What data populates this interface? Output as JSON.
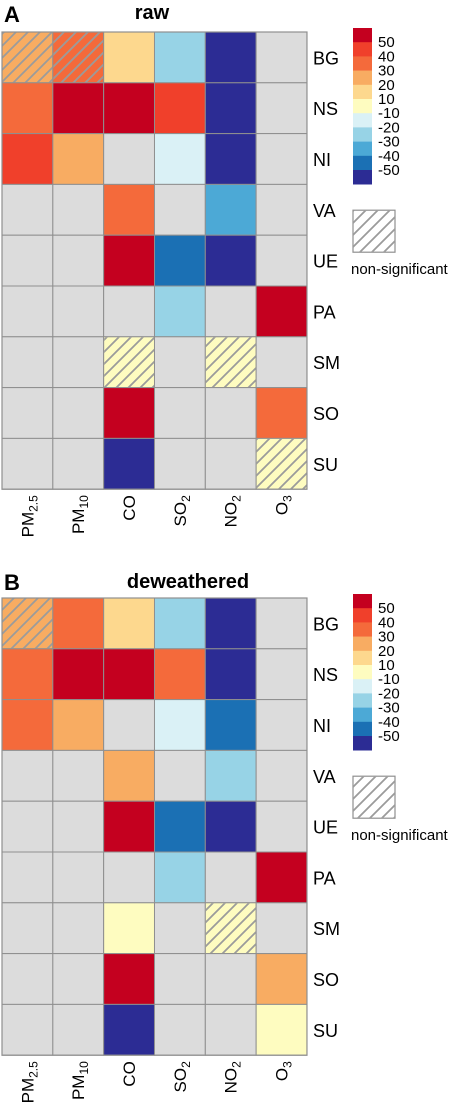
{
  "chart_data": [
    {
      "type": "heatmap",
      "panel_label": "A",
      "title": "raw",
      "columns": [
        "PM2.5",
        "PM10",
        "CO",
        "SO2",
        "NO2",
        "O3"
      ],
      "column_labels": [
        {
          "base": "PM",
          "sub": "2.5"
        },
        {
          "base": "PM",
          "sub": "10"
        },
        {
          "base": "CO",
          "sub": ""
        },
        {
          "base": "SO",
          "sub": "2"
        },
        {
          "base": "NO",
          "sub": "2"
        },
        {
          "base": "O",
          "sub": "3"
        }
      ],
      "rows": [
        "BG",
        "NS",
        "NI",
        "VA",
        "UE",
        "PA",
        "SM",
        "SO",
        "SU"
      ],
      "values": [
        [
          30,
          40,
          20,
          -30,
          -60,
          null
        ],
        [
          40,
          60,
          60,
          50,
          -60,
          null
        ],
        [
          50,
          30,
          null,
          -20,
          -60,
          null
        ],
        [
          null,
          null,
          40,
          null,
          -40,
          null
        ],
        [
          null,
          null,
          60,
          -50,
          -60,
          null
        ],
        [
          null,
          null,
          null,
          -30,
          null,
          60
        ],
        [
          null,
          null,
          10,
          null,
          10,
          null
        ],
        [
          null,
          null,
          60,
          null,
          null,
          40
        ],
        [
          null,
          null,
          -60,
          null,
          null,
          10
        ]
      ],
      "non_significant": [
        [
          true,
          true,
          false,
          false,
          false,
          false
        ],
        [
          false,
          false,
          false,
          false,
          false,
          false
        ],
        [
          false,
          false,
          false,
          false,
          false,
          false
        ],
        [
          false,
          false,
          false,
          false,
          false,
          false
        ],
        [
          false,
          false,
          false,
          false,
          false,
          false
        ],
        [
          false,
          false,
          false,
          false,
          false,
          false
        ],
        [
          false,
          false,
          true,
          false,
          true,
          false
        ],
        [
          false,
          false,
          false,
          false,
          false,
          false
        ],
        [
          false,
          false,
          false,
          false,
          false,
          true
        ]
      ],
      "legend": {
        "labels": [
          "50",
          "40",
          "30",
          "20",
          "10",
          "-10",
          "-20",
          "-30",
          "-40",
          "-50"
        ],
        "non_significant_label": "non-significant",
        "placement": "right"
      }
    },
    {
      "type": "heatmap",
      "panel_label": "B",
      "title": "deweathered",
      "columns": [
        "PM2.5",
        "PM10",
        "CO",
        "SO2",
        "NO2",
        "O3"
      ],
      "column_labels": [
        {
          "base": "PM",
          "sub": "2.5"
        },
        {
          "base": "PM",
          "sub": "10"
        },
        {
          "base": "CO",
          "sub": ""
        },
        {
          "base": "SO",
          "sub": "2"
        },
        {
          "base": "NO",
          "sub": "2"
        },
        {
          "base": "O",
          "sub": "3"
        }
      ],
      "rows": [
        "BG",
        "NS",
        "NI",
        "VA",
        "UE",
        "PA",
        "SM",
        "SO",
        "SU"
      ],
      "values": [
        [
          30,
          40,
          20,
          -30,
          -60,
          null
        ],
        [
          40,
          60,
          60,
          40,
          -60,
          null
        ],
        [
          40,
          30,
          null,
          -20,
          -50,
          null
        ],
        [
          null,
          null,
          30,
          null,
          -30,
          null
        ],
        [
          null,
          null,
          60,
          -50,
          -60,
          null
        ],
        [
          null,
          null,
          null,
          -30,
          null,
          60
        ],
        [
          null,
          null,
          10,
          null,
          10,
          null
        ],
        [
          null,
          null,
          60,
          null,
          null,
          30
        ],
        [
          null,
          null,
          -60,
          null,
          null,
          10
        ]
      ],
      "non_significant": [
        [
          true,
          false,
          false,
          false,
          false,
          false
        ],
        [
          false,
          false,
          false,
          false,
          false,
          false
        ],
        [
          false,
          false,
          false,
          false,
          false,
          false
        ],
        [
          false,
          false,
          false,
          false,
          false,
          false
        ],
        [
          false,
          false,
          false,
          false,
          false,
          false
        ],
        [
          false,
          false,
          false,
          false,
          false,
          false
        ],
        [
          false,
          false,
          false,
          false,
          true,
          false
        ],
        [
          false,
          false,
          false,
          false,
          false,
          false
        ],
        [
          false,
          false,
          false,
          false,
          false,
          false
        ]
      ],
      "legend": {
        "labels": [
          "50",
          "40",
          "30",
          "20",
          "10",
          "-10",
          "-20",
          "-30",
          "-40",
          "-50"
        ],
        "non_significant_label": "non-significant",
        "placement": "right"
      }
    }
  ],
  "colors": {
    "60": "#c4001f",
    "50": "#f0402b",
    "40": "#f46a3b",
    "30": "#f8ac62",
    "20": "#fdd88e",
    "10": "#fefcc0",
    "-20": "#daf1f6",
    "-30": "#97d3e6",
    "-40": "#4ca9d6",
    "-50": "#1b70b4",
    "-60": "#2c2c94",
    "none": "#dcdcdc",
    "grid": "#8f8f8f",
    "hatch": "#9b9b9b",
    "text": "#000000"
  },
  "legend_swatches": [
    "#c4001f",
    "#f0402b",
    "#f46a3b",
    "#f8ac62",
    "#fdd88e",
    "#fefcc0",
    "#daf1f6",
    "#97d3e6",
    "#4ca9d6",
    "#1b70b4",
    "#2c2c94"
  ]
}
